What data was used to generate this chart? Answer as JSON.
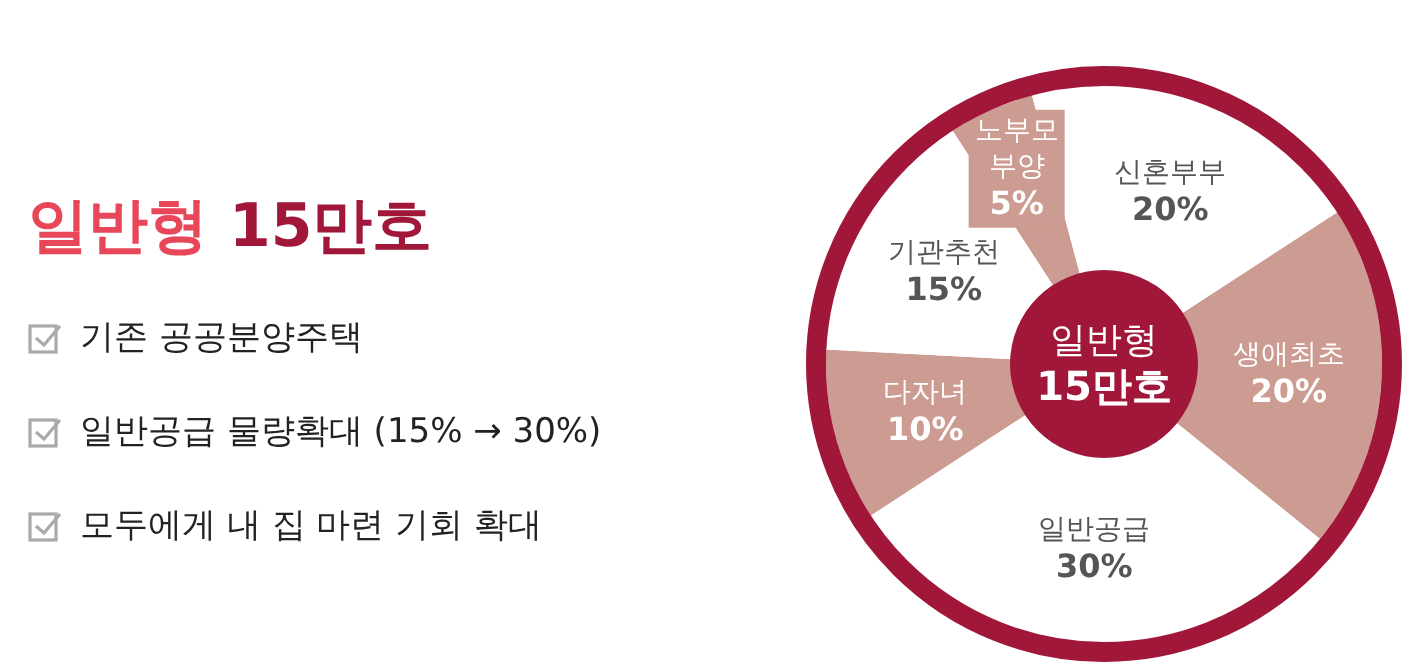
{
  "chart_data": {
    "type": "donut",
    "title": "일반형 15만호",
    "categories": [
      "노부모 부양",
      "신혼부부",
      "생애최초",
      "일반공급",
      "다자녀",
      "기관추천"
    ],
    "values": [
      5,
      20,
      20,
      30,
      10,
      15
    ],
    "colors": [
      "#cc9b91",
      "#ffffff",
      "#cc9b91",
      "#ffffff",
      "#cc9b91",
      "#ffffff"
    ],
    "value_labels": [
      "5%",
      "20%",
      "20%",
      "30%",
      "10%",
      "15%"
    ],
    "annotations": [
      "일반형 15만호",
      "기존 공공분양주택",
      "일반공급 물량확대 (15% → 30%)",
      "모두에게 내 집 마련 기회 확대"
    ],
    "legend": false
  }
}
